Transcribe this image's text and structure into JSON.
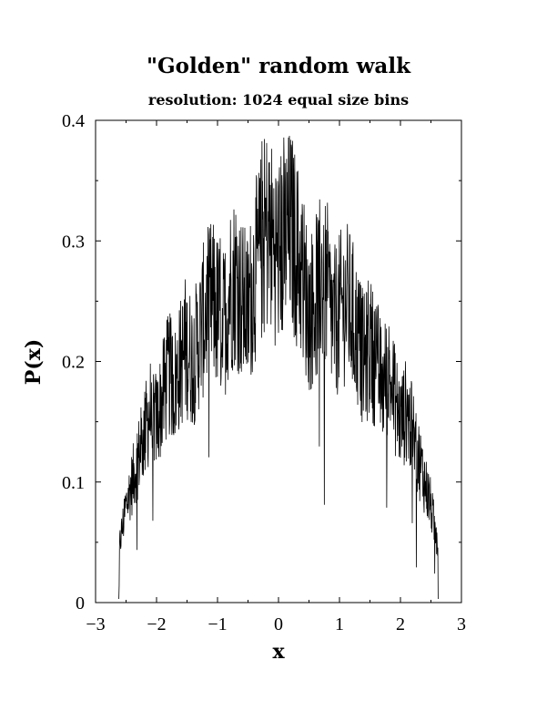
{
  "chart_data": {
    "type": "line",
    "title": "\"Golden\" random walk",
    "subtitle": "resolution: 1024 equal size bins",
    "xlabel": "x",
    "ylabel": "P(x)",
    "xlim": [
      -3,
      3
    ],
    "ylim": [
      0,
      0.4
    ],
    "x_ticks": [
      -3,
      -2,
      -1,
      0,
      1,
      2,
      3
    ],
    "x_tick_labels": [
      "−3",
      "−2",
      "−1",
      "0",
      "1",
      "2",
      "3"
    ],
    "y_ticks": [
      0,
      0.1,
      0.2,
      0.3,
      0.4
    ],
    "y_tick_labels": [
      "0",
      "0.1",
      "0.2",
      "0.3",
      "0.4"
    ],
    "grid": false,
    "legend": "none",
    "line_color": "#000000",
    "bins": 1024,
    "support": [
      -2.618,
      2.618
    ],
    "series": [
      {
        "x": [
          -2.618,
          -2.6,
          -2.5,
          -2.4,
          -2.3,
          -2.2,
          -2.1,
          -2.0,
          -1.9,
          -1.8,
          -1.7,
          -1.6,
          -1.5,
          -1.4,
          -1.3,
          -1.2,
          -1.1,
          -1.0,
          -0.9,
          -0.8,
          -0.7,
          -0.6,
          -0.5,
          -0.4,
          -0.3,
          -0.2,
          -0.1,
          0.0,
          0.1,
          0.2,
          0.3,
          0.4,
          0.5,
          0.6,
          0.7,
          0.8,
          0.9,
          1.0,
          1.1,
          1.2,
          1.3,
          1.4,
          1.5,
          1.6,
          1.7,
          1.8,
          1.9,
          2.0,
          2.1,
          2.2,
          2.3,
          2.4,
          2.5,
          2.6,
          2.618
        ],
        "values": [
          0.03,
          0.05,
          0.08,
          0.1,
          0.12,
          0.14,
          0.16,
          0.15,
          0.17,
          0.19,
          0.18,
          0.2,
          0.21,
          0.2,
          0.22,
          0.24,
          0.25,
          0.24,
          0.23,
          0.26,
          0.27,
          0.25,
          0.24,
          0.27,
          0.29,
          0.31,
          0.3,
          0.29,
          0.3,
          0.31,
          0.29,
          0.27,
          0.24,
          0.25,
          0.27,
          0.26,
          0.23,
          0.24,
          0.25,
          0.24,
          0.22,
          0.2,
          0.21,
          0.2,
          0.18,
          0.19,
          0.17,
          0.15,
          0.16,
          0.14,
          0.12,
          0.1,
          0.08,
          0.05,
          0.03
        ]
      }
    ]
  }
}
